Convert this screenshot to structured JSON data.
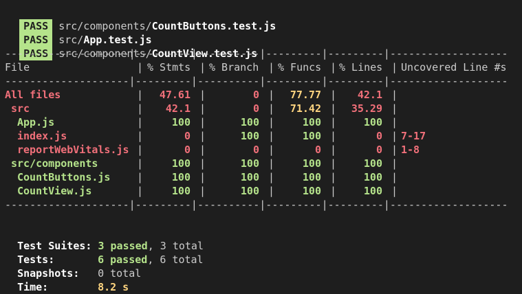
{
  "test_results": [
    {
      "status": "PASS",
      "path": "src/components/",
      "file": "CountButtons.test.js"
    },
    {
      "status": "PASS",
      "path": "src/",
      "file": "App.test.js"
    },
    {
      "status": "PASS",
      "path": "src/components/",
      "file": "CountView.test.js"
    }
  ],
  "coverage": {
    "headers": {
      "file": "File",
      "stmts": "% Stmts",
      "branch": "% Branch",
      "funcs": "% Funcs",
      "lines": "% Lines",
      "uncovered": "Uncovered Line #s"
    },
    "divider": "--------------------|---------|----------|---------|---------|-------------------",
    "rows": [
      {
        "file": "All files",
        "indent": 0,
        "stmts": "47.61",
        "branch": "0",
        "funcs": "77.77",
        "lines": "42.1",
        "uncovered": "",
        "colors": [
          "red",
          "red",
          "red",
          "yellow",
          "red"
        ]
      },
      {
        "file": "src",
        "indent": 1,
        "stmts": "42.1",
        "branch": "0",
        "funcs": "71.42",
        "lines": "35.29",
        "uncovered": "",
        "colors": [
          "red",
          "red",
          "red",
          "yellow",
          "red"
        ]
      },
      {
        "file": "App.js",
        "indent": 2,
        "stmts": "100",
        "branch": "100",
        "funcs": "100",
        "lines": "100",
        "uncovered": "",
        "colors": [
          "green",
          "green",
          "green",
          "green",
          "green"
        ]
      },
      {
        "file": "index.js",
        "indent": 2,
        "stmts": "0",
        "branch": "100",
        "funcs": "100",
        "lines": "0",
        "uncovered": "7-17",
        "colors": [
          "red",
          "red",
          "green",
          "green",
          "red"
        ]
      },
      {
        "file": "reportWebVitals.js",
        "indent": 2,
        "stmts": "0",
        "branch": "0",
        "funcs": "0",
        "lines": "0",
        "uncovered": "1-8",
        "colors": [
          "red",
          "red",
          "red",
          "red",
          "red"
        ]
      },
      {
        "file": "src/components",
        "indent": 1,
        "stmts": "100",
        "branch": "100",
        "funcs": "100",
        "lines": "100",
        "uncovered": "",
        "colors": [
          "green",
          "green",
          "green",
          "green",
          "green"
        ]
      },
      {
        "file": "CountButtons.js",
        "indent": 2,
        "stmts": "100",
        "branch": "100",
        "funcs": "100",
        "lines": "100",
        "uncovered": "",
        "colors": [
          "green",
          "green",
          "green",
          "green",
          "green"
        ]
      },
      {
        "file": "CountView.js",
        "indent": 2,
        "stmts": "100",
        "branch": "100",
        "funcs": "100",
        "lines": "100",
        "uncovered": "",
        "colors": [
          "green",
          "green",
          "green",
          "green",
          "green"
        ]
      }
    ]
  },
  "summary": {
    "suites_label": "Test Suites:",
    "suites_passed": "3 passed",
    "suites_total": ", 3 total",
    "tests_label": "Tests:",
    "tests_passed": "6 passed",
    "tests_total": ", 6 total",
    "snapshots_label": "Snapshots:",
    "snapshots_total": "0 total",
    "time_label": "Time:",
    "time_value": "8.2 s"
  },
  "colors": {
    "background": "#1e1e1e",
    "pass_badge": "#b5e38b",
    "red": "#f1707a",
    "yellow": "#ffd580",
    "green": "#b5e38b",
    "text": "#cccccc"
  }
}
